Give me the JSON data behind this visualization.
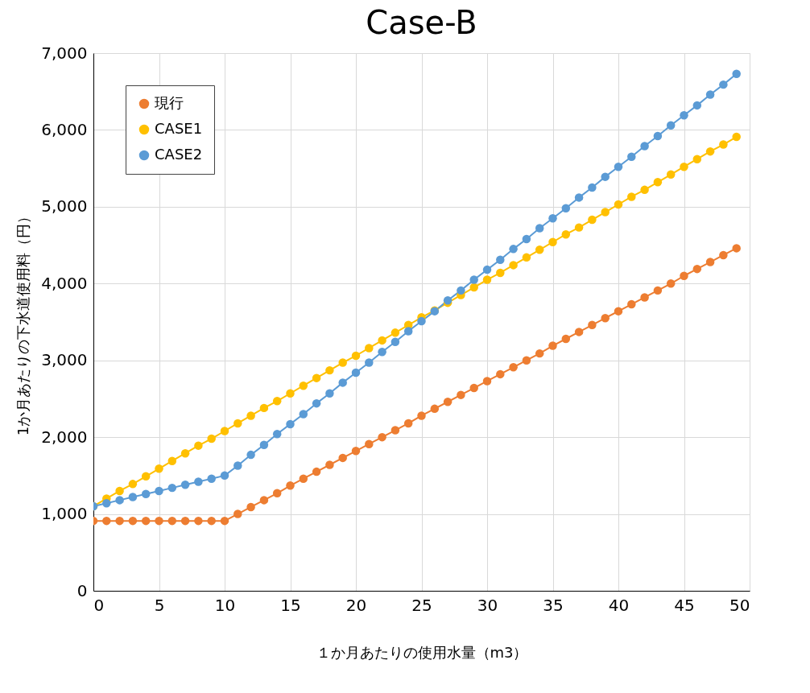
{
  "chart_data": {
    "type": "line",
    "title": "Case-B",
    "xlabel": "１か月あたりの使用水量（m3）",
    "ylabel": "1か月あたりの下水道使用料（円）",
    "x": [
      0,
      1,
      2,
      3,
      4,
      5,
      6,
      7,
      8,
      9,
      10,
      11,
      12,
      13,
      14,
      15,
      16,
      17,
      18,
      19,
      20,
      21,
      22,
      23,
      24,
      25,
      26,
      27,
      28,
      29,
      30,
      31,
      32,
      33,
      34,
      35,
      36,
      37,
      38,
      39,
      40,
      41,
      42,
      43,
      44,
      45,
      46,
      47,
      48,
      49
    ],
    "series": [
      {
        "name": "現行",
        "color": "#ed7d31",
        "values": [
          910,
          910,
          910,
          910,
          910,
          910,
          910,
          910,
          910,
          910,
          910,
          1000,
          1090,
          1180,
          1270,
          1370,
          1460,
          1550,
          1640,
          1730,
          1820,
          1910,
          2000,
          2090,
          2180,
          2280,
          2370,
          2460,
          2550,
          2640,
          2730,
          2820,
          2910,
          3000,
          3090,
          3190,
          3280,
          3370,
          3460,
          3550,
          3640,
          3730,
          3820,
          3910,
          4000,
          4100,
          4190,
          4280,
          4370,
          4460
        ]
      },
      {
        "name": "CASE1",
        "color": "#ffc000",
        "values": [
          1100,
          1200,
          1300,
          1390,
          1490,
          1590,
          1690,
          1790,
          1890,
          1980,
          2080,
          2180,
          2280,
          2380,
          2470,
          2570,
          2670,
          2770,
          2870,
          2970,
          3060,
          3160,
          3260,
          3360,
          3460,
          3560,
          3650,
          3750,
          3850,
          3950,
          4050,
          4140,
          4240,
          4340,
          4440,
          4540,
          4640,
          4730,
          4830,
          4930,
          5030,
          5130,
          5220,
          5320,
          5420,
          5520,
          5620,
          5720,
          5810,
          5910
        ]
      },
      {
        "name": "CASE2",
        "color": "#5b9bd5",
        "values": [
          1100,
          1140,
          1180,
          1220,
          1260,
          1300,
          1340,
          1380,
          1420,
          1460,
          1500,
          1630,
          1770,
          1900,
          2040,
          2170,
          2300,
          2440,
          2570,
          2710,
          2840,
          2970,
          3110,
          3240,
          3380,
          3510,
          3640,
          3780,
          3910,
          4050,
          4180,
          4310,
          4450,
          4580,
          4720,
          4850,
          4980,
          5120,
          5250,
          5390,
          5520,
          5650,
          5790,
          5920,
          6060,
          6190,
          6320,
          6460,
          6590,
          6730
        ]
      }
    ],
    "xlim": [
      0,
      50
    ],
    "xticks": [
      0,
      5,
      10,
      15,
      20,
      25,
      30,
      35,
      40,
      45,
      50
    ],
    "ylim": [
      0,
      7000
    ],
    "yticks": [
      {
        "value": 0,
        "label": "0"
      },
      {
        "value": 1000,
        "label": "1,000"
      },
      {
        "value": 2000,
        "label": "2,000"
      },
      {
        "value": 3000,
        "label": "3,000"
      },
      {
        "value": 4000,
        "label": "4,000"
      },
      {
        "value": 5000,
        "label": "5,000"
      },
      {
        "value": 6000,
        "label": "6,000"
      },
      {
        "value": 7000,
        "label": "7,000"
      }
    ],
    "grid": true,
    "legend": "top left",
    "marker": "circle"
  }
}
